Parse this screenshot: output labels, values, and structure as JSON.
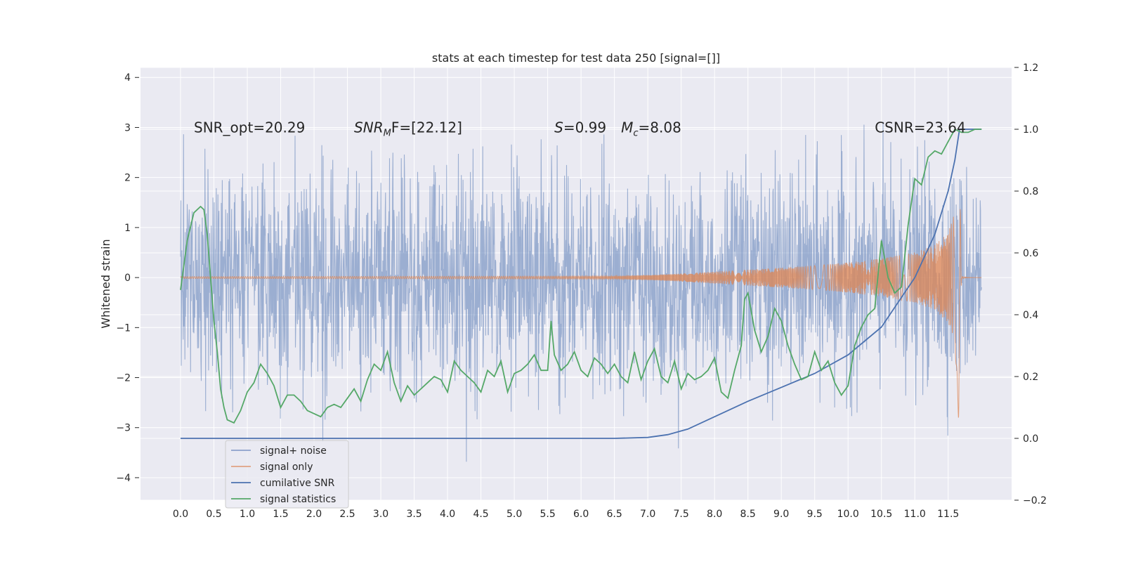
{
  "chart_data": {
    "type": "line",
    "title": "stats at each timestep for test data 250 [signal=[]]",
    "xlabel": "",
    "ylabel": "Whitened strain",
    "xlim": [
      -0.6,
      12.45
    ],
    "ylim": [
      -4.45,
      4.2
    ],
    "y2lim": [
      -0.2,
      1.2
    ],
    "x_ticks": [
      "0.0",
      "0.5",
      "1.0",
      "1.5",
      "2.0",
      "2.5",
      "3.0",
      "3.5",
      "4.0",
      "4.5",
      "5.0",
      "5.5",
      "6.0",
      "6.5",
      "7.0",
      "7.5",
      "8.0",
      "8.5",
      "9.0",
      "9.5",
      "10.0",
      "10.5",
      "11.0",
      "11.5"
    ],
    "y_ticks": [
      "4",
      "3",
      "2",
      "1",
      "0",
      "−1",
      "−2",
      "−3",
      "−4"
    ],
    "y2_ticks": [
      "1.2",
      "1.0",
      "0.8",
      "0.6",
      "0.4",
      "0.2",
      "0.0",
      "−0.2"
    ],
    "grid": true,
    "legend_position": "lower-left",
    "annotations": [
      {
        "text": "SNR_opt=20.29",
        "x": 0.2,
        "y": 3.0
      },
      {
        "text_main": "SNR",
        "text_sub": "M",
        "text_rest": "F=[22.12]",
        "x": 2.6,
        "y": 3.0
      },
      {
        "text_main": "S",
        "text_rest": "=0.99",
        "x": 5.6,
        "y": 3.0
      },
      {
        "text_main": "M",
        "text_sub": "c",
        "text_rest": "=8.08",
        "x": 6.6,
        "y": 3.0
      },
      {
        "text": "CSNR=23.64",
        "x": 10.4,
        "y": 3.0
      }
    ],
    "series": [
      {
        "name": "signal+ noise",
        "color": "#4c72b0",
        "alpha": 0.5,
        "axis": "left",
        "description_envelope_upper": 2.0,
        "description_envelope_lower": -2.0,
        "peak_max": 3.8,
        "peak_min": -4.05,
        "x_range": [
          0.0,
          12.0
        ]
      },
      {
        "name": "signal only",
        "color": "#dd8452",
        "axis": "left",
        "envelope_x": [
          0.0,
          6.5,
          7.0,
          7.5,
          8.0,
          8.5,
          9.0,
          9.5,
          10.0,
          10.5,
          11.0,
          11.3,
          11.5,
          11.6,
          11.66,
          11.7
        ],
        "envelope_y": [
          0.02,
          0.03,
          0.05,
          0.08,
          0.12,
          0.16,
          0.2,
          0.24,
          0.3,
          0.38,
          0.5,
          0.65,
          0.9,
          1.3,
          3.0,
          0.0
        ]
      },
      {
        "name": "cumilative SNR",
        "color": "#4c72b0",
        "axis": "right",
        "x": [
          0.0,
          6.5,
          7.0,
          7.3,
          7.6,
          8.0,
          8.5,
          9.0,
          9.5,
          10.0,
          10.5,
          11.0,
          11.3,
          11.5,
          11.6,
          11.67,
          12.0
        ],
        "y": [
          0.0,
          0.0,
          0.003,
          0.012,
          0.03,
          0.07,
          0.12,
          0.165,
          0.21,
          0.27,
          0.36,
          0.52,
          0.66,
          0.8,
          0.9,
          1.0,
          1.0
        ]
      },
      {
        "name": "signal statistics",
        "color": "#55a868",
        "axis": "right",
        "x": [
          0.0,
          0.1,
          0.2,
          0.3,
          0.35,
          0.4,
          0.5,
          0.55,
          0.6,
          0.65,
          0.7,
          0.8,
          0.9,
          1.0,
          1.1,
          1.2,
          1.3,
          1.4,
          1.5,
          1.6,
          1.7,
          1.8,
          1.9,
          2.0,
          2.1,
          2.2,
          2.3,
          2.4,
          2.5,
          2.6,
          2.7,
          2.8,
          2.9,
          3.0,
          3.1,
          3.2,
          3.3,
          3.4,
          3.5,
          3.6,
          3.7,
          3.8,
          3.9,
          4.0,
          4.1,
          4.2,
          4.3,
          4.4,
          4.5,
          4.6,
          4.7,
          4.8,
          4.9,
          5.0,
          5.1,
          5.2,
          5.3,
          5.4,
          5.5,
          5.55,
          5.6,
          5.7,
          5.8,
          5.9,
          6.0,
          6.1,
          6.2,
          6.3,
          6.4,
          6.5,
          6.6,
          6.7,
          6.8,
          6.9,
          7.0,
          7.1,
          7.2,
          7.3,
          7.4,
          7.5,
          7.6,
          7.7,
          7.8,
          7.9,
          8.0,
          8.1,
          8.2,
          8.3,
          8.4,
          8.45,
          8.5,
          8.6,
          8.7,
          8.8,
          8.9,
          9.0,
          9.1,
          9.2,
          9.3,
          9.4,
          9.5,
          9.6,
          9.7,
          9.8,
          9.9,
          10.0,
          10.1,
          10.2,
          10.3,
          10.4,
          10.5,
          10.6,
          10.7,
          10.8,
          10.9,
          11.0,
          11.1,
          11.2,
          11.3,
          11.4,
          11.5,
          11.6,
          11.7,
          11.8,
          11.9,
          12.0
        ],
        "y": [
          0.48,
          0.64,
          0.73,
          0.75,
          0.74,
          0.66,
          0.38,
          0.28,
          0.16,
          0.1,
          0.06,
          0.05,
          0.09,
          0.15,
          0.18,
          0.24,
          0.21,
          0.17,
          0.1,
          0.14,
          0.14,
          0.12,
          0.09,
          0.08,
          0.07,
          0.1,
          0.11,
          0.1,
          0.13,
          0.16,
          0.12,
          0.19,
          0.24,
          0.22,
          0.28,
          0.18,
          0.12,
          0.17,
          0.14,
          0.16,
          0.18,
          0.2,
          0.19,
          0.15,
          0.25,
          0.22,
          0.2,
          0.18,
          0.15,
          0.22,
          0.2,
          0.25,
          0.15,
          0.21,
          0.22,
          0.24,
          0.27,
          0.22,
          0.22,
          0.38,
          0.27,
          0.22,
          0.24,
          0.28,
          0.22,
          0.2,
          0.26,
          0.24,
          0.21,
          0.24,
          0.2,
          0.18,
          0.28,
          0.19,
          0.25,
          0.29,
          0.2,
          0.18,
          0.25,
          0.16,
          0.21,
          0.19,
          0.2,
          0.22,
          0.26,
          0.15,
          0.13,
          0.22,
          0.3,
          0.45,
          0.47,
          0.35,
          0.28,
          0.33,
          0.42,
          0.38,
          0.3,
          0.24,
          0.19,
          0.2,
          0.28,
          0.22,
          0.25,
          0.18,
          0.14,
          0.17,
          0.3,
          0.36,
          0.4,
          0.42,
          0.64,
          0.52,
          0.47,
          0.49,
          0.69,
          0.84,
          0.82,
          0.91,
          0.93,
          0.92,
          0.96,
          1.0,
          0.99,
          0.99,
          1.0,
          1.0
        ]
      }
    ]
  },
  "legend": {
    "items": [
      {
        "label": "signal+ noise",
        "color": "#8da0cb"
      },
      {
        "label": "signal only",
        "color": "#e1a283"
      },
      {
        "label": "cumilative SNR",
        "color": "#4c72b0"
      },
      {
        "label": "signal statistics",
        "color": "#55a868"
      }
    ]
  },
  "colors": {
    "axes_bg": "#eaeaf2",
    "grid": "#ffffff",
    "noise": "#4c72b0",
    "signal": "#dd8452",
    "csnr": "#4c72b0",
    "stats": "#55a868"
  }
}
